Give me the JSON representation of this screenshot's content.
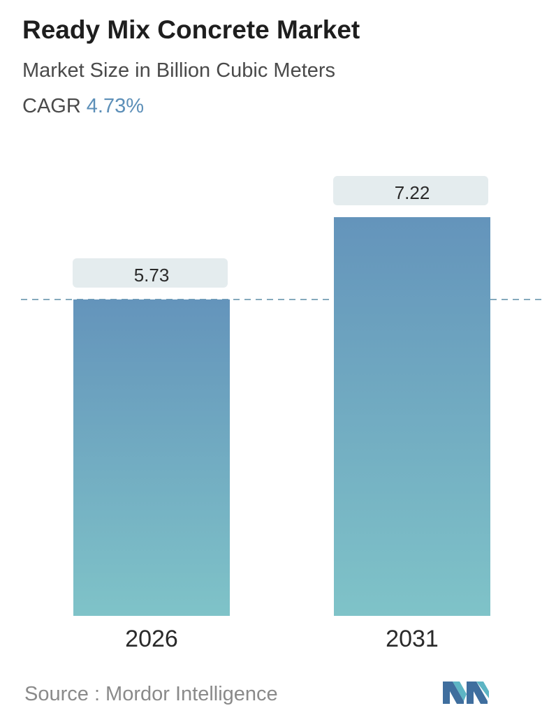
{
  "header": {
    "title": "Ready Mix Concrete Market",
    "subtitle": "Market Size in Billion Cubic Meters",
    "cagr_label": "CAGR",
    "cagr_value": "4.73%"
  },
  "chart_data": {
    "type": "bar",
    "categories": [
      "2026",
      "2031"
    ],
    "values": [
      5.73,
      7.22
    ],
    "value_labels": [
      "5.73",
      "7.22"
    ],
    "title": "Ready Mix Concrete Market",
    "ylabel": "",
    "ylim": [
      0,
      7.22
    ],
    "grid": false,
    "reference_line": 5.73
  },
  "footer": {
    "source": "Source :  Mordor Intelligence",
    "logo_icon": "mordor-intelligence-logo-icon"
  },
  "colors": {
    "bar_top": "#6494bb",
    "bar_bottom": "#7fc3c8",
    "label_box": "#e4ecee",
    "dashed_line": "#5f8fa8",
    "accent": "#5c8fb8"
  }
}
